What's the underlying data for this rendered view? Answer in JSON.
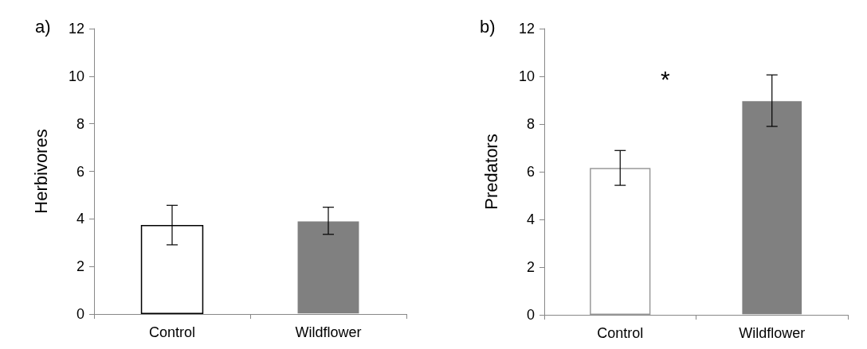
{
  "chart_data": [
    {
      "type": "bar",
      "title": "a)",
      "ylabel": "Herbivores",
      "categories": [
        "Control",
        "Wildflower"
      ],
      "values": [
        3.74,
        3.92
      ],
      "errors": [
        0.83,
        0.57
      ],
      "colors": [
        "#ffffff",
        "#808080"
      ],
      "ylim": [
        0,
        12
      ],
      "yticks": [
        0,
        2,
        4,
        6,
        8,
        10,
        12
      ]
    },
    {
      "type": "bar",
      "title": "b)",
      "ylabel": "Predators",
      "categories": [
        "Control",
        "Wildflower"
      ],
      "values": [
        6.16,
        8.98
      ],
      "errors": [
        0.73,
        1.08
      ],
      "colors": [
        "#ffffff",
        "#808080"
      ],
      "ylim": [
        0,
        12
      ],
      "yticks": [
        0,
        2,
        4,
        6,
        8,
        10,
        12
      ],
      "annotations": [
        "*"
      ]
    }
  ]
}
